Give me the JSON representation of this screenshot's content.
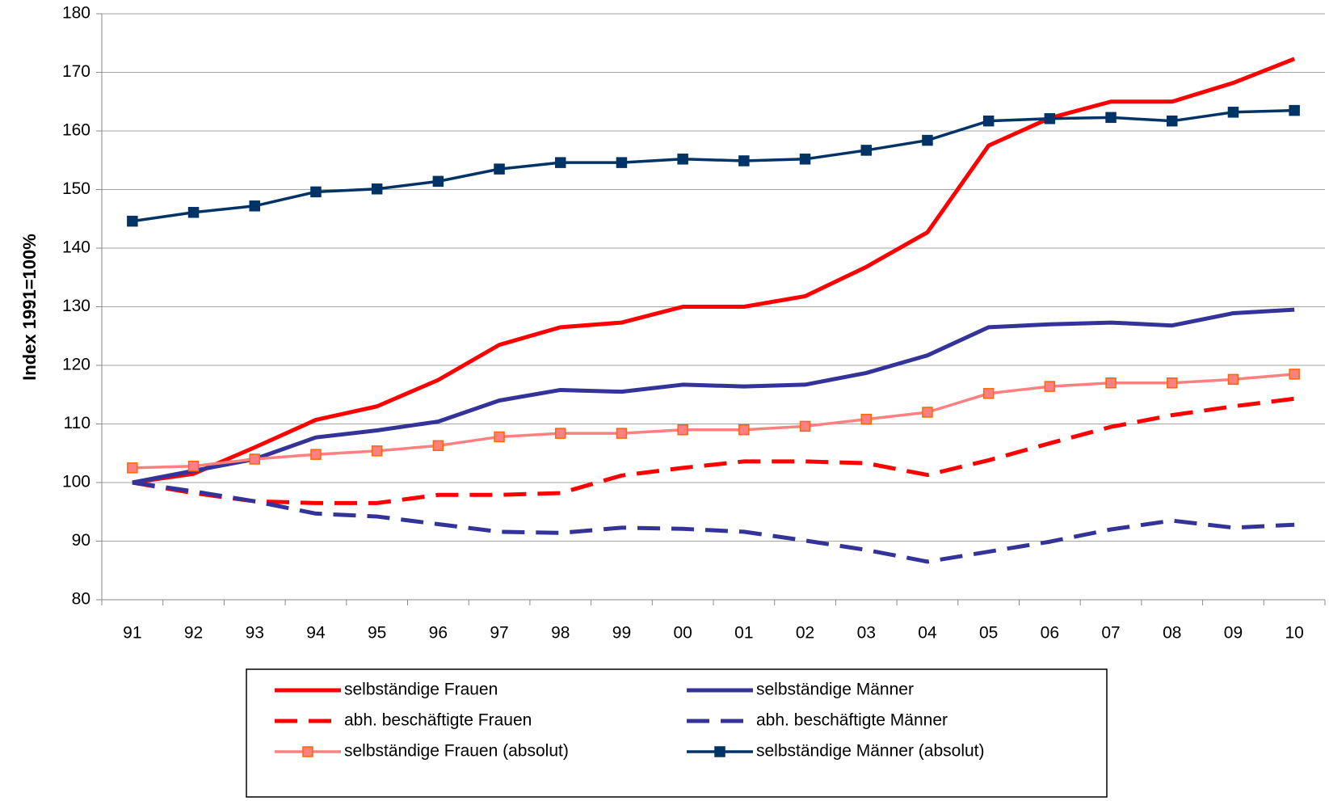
{
  "chart_data": {
    "type": "line",
    "y_label": "Index 1991=100%",
    "categories": [
      "91",
      "92",
      "93",
      "94",
      "95",
      "96",
      "97",
      "98",
      "99",
      "00",
      "01",
      "02",
      "03",
      "04",
      "05",
      "06",
      "07",
      "08",
      "09",
      "10"
    ],
    "ylim": [
      80,
      180
    ],
    "yticks": [
      80,
      90,
      100,
      110,
      120,
      130,
      140,
      150,
      160,
      170,
      180
    ],
    "grid": true,
    "series": [
      {
        "name": "selbständige Frauen",
        "color": "#ff0000",
        "dash": false,
        "marker": null,
        "values": [
          100,
          101.5,
          106,
          110.7,
          113,
          117.5,
          123.5,
          126.5,
          127.3,
          130,
          130,
          131.8,
          136.8,
          142.7,
          157.5,
          162.2,
          165,
          165,
          168.2,
          172.3
        ]
      },
      {
        "name": "selbständige Männer",
        "color": "#333399",
        "dash": false,
        "marker": null,
        "values": [
          100,
          102,
          104,
          107.7,
          108.9,
          110.4,
          114,
          115.8,
          115.5,
          116.7,
          116.4,
          116.7,
          118.7,
          121.7,
          126.5,
          127,
          127.3,
          126.8,
          128.9,
          129.5
        ]
      },
      {
        "name": "abh. beschäftigte Frauen",
        "color": "#ff0000",
        "dash": true,
        "marker": null,
        "values": [
          100,
          98.2,
          96.8,
          96.5,
          96.5,
          97.9,
          97.9,
          98.2,
          101.2,
          102.5,
          103.6,
          103.6,
          103.3,
          101.3,
          103.8,
          106.7,
          109.5,
          111.5,
          113,
          114.3
        ]
      },
      {
        "name": "abh. beschäftigte Männer",
        "color": "#333399",
        "dash": true,
        "marker": null,
        "values": [
          100,
          98.5,
          96.8,
          94.7,
          94.2,
          92.9,
          91.6,
          91.4,
          92.3,
          92.1,
          91.6,
          90.1,
          88.5,
          86.5,
          88.2,
          89.9,
          92,
          93.5,
          92.3,
          92.8
        ]
      },
      {
        "name": "selbständige Frauen (absolut)",
        "color": "#ff8080",
        "dash": false,
        "marker": "square",
        "values": [
          102.5,
          102.8,
          104,
          104.8,
          105.4,
          106.3,
          107.8,
          108.4,
          108.4,
          109,
          109,
          109.6,
          110.8,
          112,
          115.2,
          116.4,
          117,
          117,
          117.6,
          118.5
        ]
      },
      {
        "name": "selbständige Männer (absolut)",
        "color": "#003366",
        "dash": false,
        "marker": "square",
        "values": [
          144.6,
          146.1,
          147.2,
          149.6,
          150.1,
          151.4,
          153.5,
          154.6,
          154.6,
          155.2,
          154.9,
          155.2,
          156.7,
          158.4,
          161.7,
          162.1,
          162.3,
          161.7,
          163.2,
          163.5
        ]
      }
    ]
  }
}
